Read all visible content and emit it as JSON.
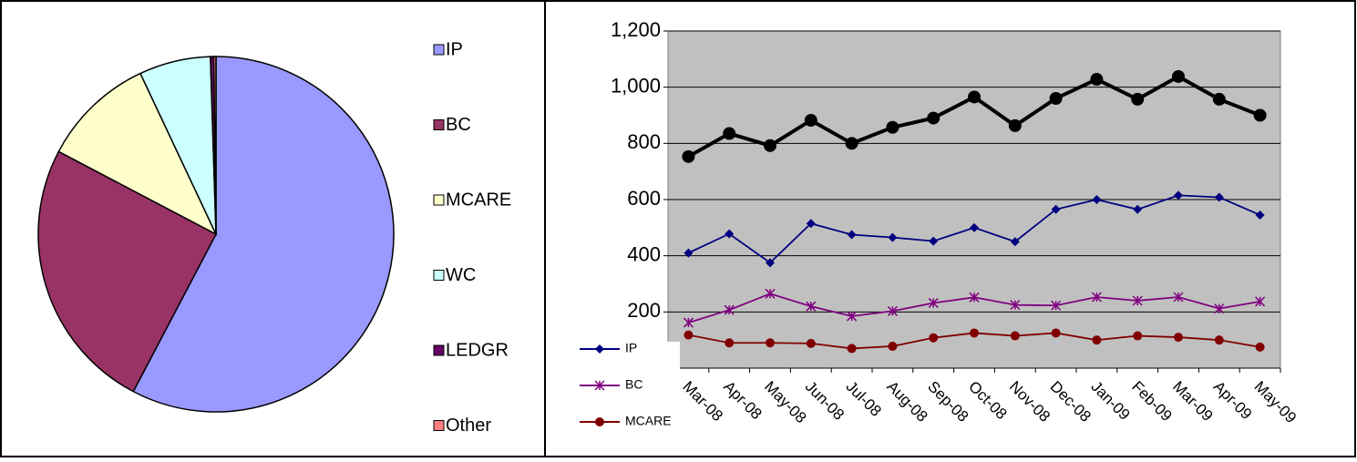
{
  "chart_data": [
    {
      "type": "pie",
      "categories": [
        "IP",
        "BC",
        "MCARE",
        "WC",
        "LEDGR",
        "Other"
      ],
      "values": [
        57.7,
        25,
        10.3,
        6.5,
        0.3,
        0.2
      ],
      "colors": [
        "#9999ff",
        "#993366",
        "#ffffcc",
        "#ccffff",
        "#660066",
        "#ff8080"
      ],
      "legend": "right"
    },
    {
      "type": "line",
      "categories": [
        "Mar-08",
        "Apr-08",
        "May-08",
        "Jun-08",
        "Jul-08",
        "Aug-08",
        "Sep-08",
        "Oct-08",
        "Nov-08",
        "Dec-08",
        "Jan-09",
        "Feb-09",
        "Mar-09",
        "Apr-09",
        "May-09"
      ],
      "series": [
        {
          "color": "#000000",
          "marker": "circle",
          "values": [
            753,
            835,
            792,
            882,
            800,
            857,
            890,
            965,
            863,
            960,
            1028,
            957,
            1038,
            957,
            900
          ]
        },
        {
          "name": "IP",
          "color": "#000080",
          "marker": "diamond",
          "values": [
            410,
            478,
            375,
            515,
            475,
            465,
            452,
            500,
            450,
            565,
            600,
            565,
            615,
            608,
            545
          ]
        },
        {
          "name": "BC",
          "color": "#800080",
          "marker": "asterisk",
          "values": [
            162,
            207,
            265,
            220,
            185,
            203,
            232,
            252,
            225,
            223,
            253,
            240,
            253,
            212,
            237
          ]
        },
        {
          "name": "MCARE",
          "color": "#800000",
          "marker": "circle",
          "values": [
            118,
            90,
            90,
            88,
            70,
            78,
            108,
            125,
            115,
            125,
            100,
            115,
            110,
            100,
            75
          ]
        }
      ],
      "ylim": [
        0,
        1200
      ],
      "yticks": [
        {
          "value": 200,
          "label": "200"
        },
        {
          "value": 400,
          "label": "400"
        },
        {
          "value": 600,
          "label": "600"
        },
        {
          "value": 800,
          "label": "800"
        },
        {
          "value": 1000,
          "label": "1,000"
        },
        {
          "value": 1200,
          "label": "1,200"
        }
      ],
      "grid": true,
      "legend": "bottom-left"
    }
  ]
}
